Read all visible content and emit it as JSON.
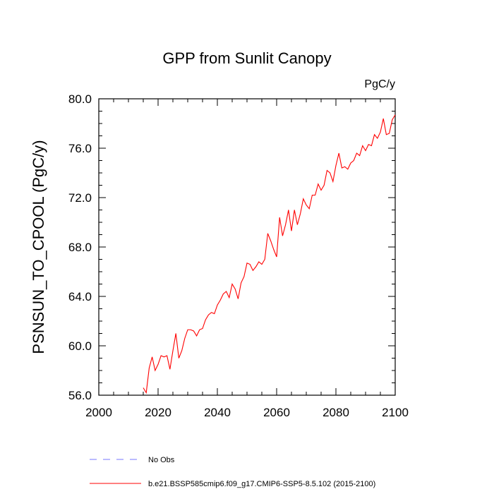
{
  "chart_data": {
    "type": "line",
    "title": "GPP from Sunlit Canopy",
    "units": "PgC/y",
    "xlabel": "",
    "ylabel": "PSNSUN_TO_CPOOL  (PgC/y)",
    "xlim": [
      2000,
      2100
    ],
    "ylim": [
      56,
      80
    ],
    "xticks": [
      2000,
      2020,
      2040,
      2060,
      2080,
      2100
    ],
    "xtick_labels": [
      "2000",
      "2020",
      "2040",
      "2060",
      "2080",
      "2100"
    ],
    "yticks": [
      56,
      60,
      64,
      68,
      72,
      76,
      80
    ],
    "ytick_labels": [
      "56.0",
      "60.0",
      "64.0",
      "68.0",
      "72.0",
      "76.0",
      "80.0"
    ],
    "grid": false,
    "legend_position": "bottom-left",
    "series": [
      {
        "name": "No Obs",
        "color": "#7777ff",
        "dash": "dashed",
        "x": [],
        "values": []
      },
      {
        "name": "b.e21.BSSP585cmip6.f09_g17.CMIP6-SSP5-8.5.102 (2015-2100)",
        "color": "#ff0000",
        "dash": "solid",
        "x": [
          2015,
          2016,
          2017,
          2018,
          2019,
          2020,
          2021,
          2022,
          2023,
          2024,
          2025,
          2026,
          2027,
          2028,
          2029,
          2030,
          2031,
          2032,
          2033,
          2034,
          2035,
          2036,
          2037,
          2038,
          2039,
          2040,
          2041,
          2042,
          2043,
          2044,
          2045,
          2046,
          2047,
          2048,
          2049,
          2050,
          2051,
          2052,
          2053,
          2054,
          2055,
          2056,
          2057,
          2058,
          2059,
          2060,
          2061,
          2062,
          2063,
          2064,
          2065,
          2066,
          2067,
          2068,
          2069,
          2070,
          2071,
          2072,
          2073,
          2074,
          2075,
          2076,
          2077,
          2078,
          2079,
          2080,
          2081,
          2082,
          2083,
          2084,
          2085,
          2086,
          2087,
          2088,
          2089,
          2090,
          2091,
          2092,
          2093,
          2094,
          2095,
          2096,
          2097,
          2098,
          2099,
          2100
        ],
        "values": [
          56.6,
          56.2,
          58.2,
          59.1,
          58.0,
          58.5,
          59.2,
          59.1,
          59.2,
          58.1,
          59.6,
          61.0,
          59.0,
          59.6,
          60.6,
          61.3,
          61.3,
          61.2,
          60.8,
          61.3,
          61.4,
          62.1,
          62.5,
          62.7,
          62.6,
          63.3,
          63.7,
          64.2,
          64.4,
          63.9,
          65.0,
          64.6,
          63.8,
          65.1,
          65.6,
          66.7,
          66.6,
          66.1,
          66.4,
          66.8,
          66.6,
          67.0,
          69.1,
          68.5,
          67.8,
          67.2,
          70.4,
          68.9,
          69.8,
          71.0,
          69.3,
          71.0,
          69.8,
          70.7,
          71.9,
          71.4,
          71.1,
          72.2,
          72.2,
          73.1,
          72.6,
          73.0,
          74.2,
          74.0,
          73.3,
          74.6,
          75.6,
          74.4,
          74.5,
          74.3,
          74.8,
          75.0,
          75.6,
          75.4,
          76.2,
          75.8,
          76.3,
          76.2,
          77.1,
          76.8,
          77.3,
          78.4,
          77.1,
          77.2,
          78.3,
          78.7
        ]
      }
    ]
  }
}
